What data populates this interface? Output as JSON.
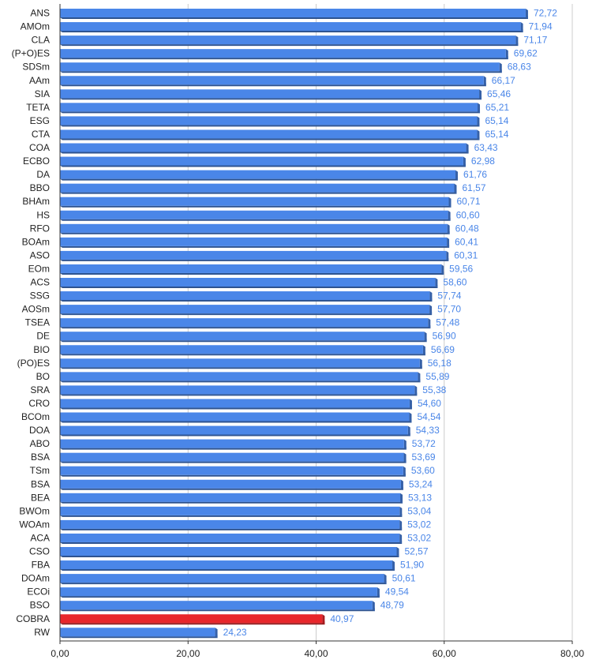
{
  "chart_data": {
    "type": "bar",
    "orientation": "horizontal",
    "title": "",
    "xlabel": "",
    "ylabel": "",
    "xlim": [
      0,
      80
    ],
    "x_ticks": [
      "0,00",
      "20,00",
      "40,00",
      "60,00",
      "80,00"
    ],
    "grid": "vertical",
    "legend": "none",
    "colors": {
      "default": "#4a86e8",
      "highlight": "#e8262b",
      "value_label": "#4a86e8"
    },
    "highlight_category": "COBRA",
    "categories": [
      "ANS",
      "AMOm",
      "CLA",
      "(P+O)ES",
      "SDSm",
      "AAm",
      "SIA",
      "TETA",
      "ESG",
      "CTA",
      "COA",
      "ECBO",
      "DA",
      "BBO",
      "BHAm",
      "HS",
      "RFO",
      "BOAm",
      "ASO",
      "EOm",
      "ACS",
      "SSG",
      "AOSm",
      "TSEA",
      "DE",
      "BIO",
      "(PO)ES",
      "BO",
      "SRA",
      "CRO",
      "BCOm",
      "DOA",
      "ABO",
      "BSA",
      "TSm",
      "BSA",
      "BEA",
      "BWOm",
      "WOAm",
      "ACA",
      "CSO",
      "FBA",
      "DOAm",
      "ECOi",
      "BSO",
      "COBRA",
      "RW"
    ],
    "values": [
      72.72,
      71.94,
      71.17,
      69.62,
      68.63,
      66.17,
      65.46,
      65.21,
      65.14,
      65.14,
      63.43,
      62.98,
      61.76,
      61.57,
      60.71,
      60.6,
      60.48,
      60.41,
      60.31,
      59.56,
      58.6,
      57.74,
      57.7,
      57.48,
      56.9,
      56.69,
      56.18,
      55.89,
      55.38,
      54.6,
      54.54,
      54.33,
      53.72,
      53.69,
      53.6,
      53.24,
      53.13,
      53.04,
      53.02,
      53.02,
      52.57,
      51.9,
      50.61,
      49.54,
      48.79,
      40.97,
      24.23
    ],
    "value_labels": [
      "72,72",
      "71,94",
      "71,17",
      "69,62",
      "68,63",
      "66,17",
      "65,46",
      "65,21",
      "65,14",
      "65,14",
      "63,43",
      "62,98",
      "61,76",
      "61,57",
      "60,71",
      "60,60",
      "60,48",
      "60,41",
      "60,31",
      "59,56",
      "58,60",
      "57,74",
      "57,70",
      "57,48",
      "56,90",
      "56,69",
      "56,18",
      "55,89",
      "55,38",
      "54,60",
      "54,54",
      "54,33",
      "53,72",
      "53,69",
      "53,60",
      "53,24",
      "53,13",
      "53,04",
      "53,02",
      "53,02",
      "52,57",
      "51,90",
      "50,61",
      "49,54",
      "48,79",
      "40,97",
      "24,23"
    ]
  }
}
